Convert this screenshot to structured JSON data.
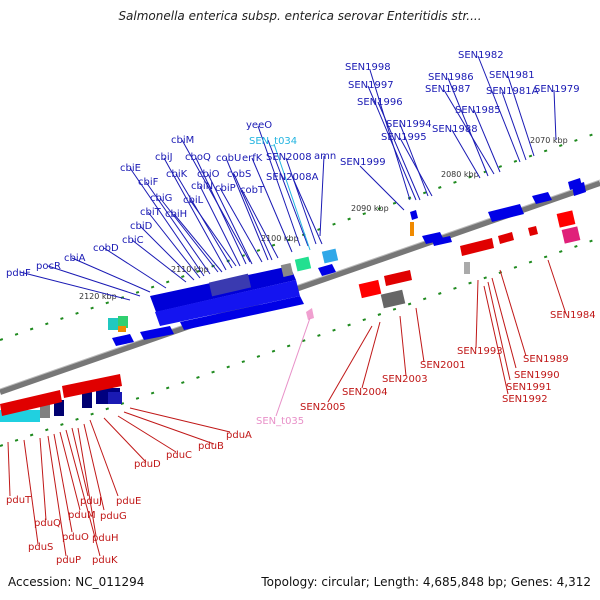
{
  "title": "Salmonella enterica subsp. enterica serovar Enteritidis str....",
  "accession": "Accession: NC_011294",
  "topology": "Topology: circular; Length: 4,685,848 bp; Genes: 4,312",
  "kbp_ticks": [
    "2070 kbp",
    "2080 kbp",
    "2090 kbp",
    "2100 kbp",
    "2110 kbp",
    "2120 kbp"
  ],
  "blue_labels": [
    "SEN1998",
    "SEN1997",
    "SEN1996",
    "SEN1994",
    "SEN1995",
    "SEN1999",
    "SEN1986",
    "SEN1987",
    "SEN1988",
    "SEN1985",
    "SEN1982",
    "SEN1981",
    "SEN1981A",
    "SEN1979",
    "yeeO",
    "SEN_t034",
    "erfK",
    "SEN2008",
    "SEN2008A",
    "amn",
    "cobU",
    "cobS",
    "cobT",
    "cbiP",
    "cbiM",
    "cbiJ",
    "cboQ",
    "cbiO",
    "cbiK",
    "cbiN",
    "cbiL",
    "cbiE",
    "cbiF",
    "cbiG",
    "cbiH",
    "cbiT",
    "cbiD",
    "cbiC",
    "cobD",
    "cbiA",
    "pocR",
    "pduF"
  ],
  "red_labels": [
    "SEN1984",
    "SEN1993",
    "SEN1989",
    "SEN1990",
    "SEN1991",
    "SEN1992",
    "SEN2001",
    "SEN2003",
    "SEN2004",
    "SEN2005",
    "pduA",
    "pduB",
    "pduC",
    "pduD",
    "pduE",
    "pduG",
    "pduH",
    "pduJ",
    "pduK",
    "pduM",
    "pduO",
    "pduP",
    "pduQ",
    "pduS",
    "pduT"
  ],
  "pink_label": "SEN_t035",
  "colors": {
    "forward": "#0000e6",
    "reverse": "#e60000",
    "trna": "#22b4e0",
    "backbone": "#7a7a7a",
    "tick": "#1f8a1f"
  }
}
